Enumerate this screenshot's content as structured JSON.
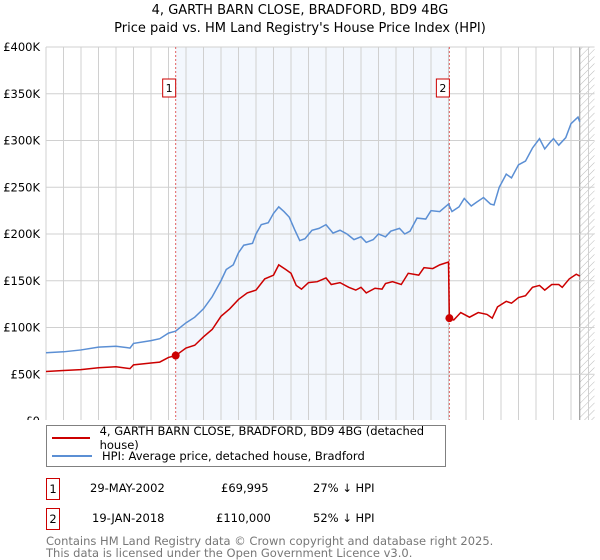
{
  "chart_data": {
    "type": "line",
    "title": "4, GARTH BARN CLOSE, BRADFORD, BD9 4BG",
    "subtitle": "Price paid vs. HM Land Registry's House Price Index (HPI)",
    "xlim": [
      1995,
      2026
    ],
    "ylim": [
      0,
      400
    ],
    "x_ticks": [
      "1995",
      "1996",
      "1997",
      "1998",
      "1999",
      "2000",
      "2001",
      "2002",
      "2003",
      "2004",
      "2005",
      "2006",
      "2007",
      "2008",
      "2009",
      "2010",
      "2011",
      "2012",
      "2013",
      "2014",
      "2015",
      "2016",
      "2017",
      "2018",
      "2019",
      "2020",
      "2021",
      "2022",
      "2023",
      "2024",
      "2025",
      "2026"
    ],
    "y_ticks": [
      {
        "v": 0,
        "label": "£0"
      },
      {
        "v": 50,
        "label": "£50K"
      },
      {
        "v": 100,
        "label": "£100K"
      },
      {
        "v": 150,
        "label": "£150K"
      },
      {
        "v": 200,
        "label": "£200K"
      },
      {
        "v": 250,
        "label": "£250K"
      },
      {
        "v": 300,
        "label": "£300K"
      },
      {
        "v": 350,
        "label": "£350K"
      },
      {
        "v": 400,
        "label": "£400K"
      }
    ],
    "grid": true,
    "shaded_range": [
      2002.41,
      2018.05
    ],
    "forecast_hatch_from": 2025.5,
    "series": [
      {
        "name": "4, GARTH BARN CLOSE, BRADFORD, BD9 4BG (detached house)",
        "color": "#cc0000",
        "points": [
          [
            1995,
            53
          ],
          [
            1996,
            54
          ],
          [
            1997,
            55
          ],
          [
            1998,
            57
          ],
          [
            1999,
            58
          ],
          [
            1999.8,
            56
          ],
          [
            2000,
            60
          ],
          [
            2001,
            62
          ],
          [
            2001.5,
            63
          ],
          [
            2002,
            68
          ],
          [
            2002.41,
            70
          ],
          [
            2003,
            78
          ],
          [
            2003.5,
            81
          ],
          [
            2004,
            90
          ],
          [
            2004.5,
            98
          ],
          [
            2005,
            112
          ],
          [
            2005.5,
            120
          ],
          [
            2006,
            130
          ],
          [
            2006.5,
            137
          ],
          [
            2007,
            140
          ],
          [
            2007.5,
            152
          ],
          [
            2008,
            156
          ],
          [
            2008.3,
            167
          ],
          [
            2008.7,
            162
          ],
          [
            2009,
            158
          ],
          [
            2009.3,
            145
          ],
          [
            2009.6,
            141
          ],
          [
            2010,
            148
          ],
          [
            2010.5,
            149
          ],
          [
            2011,
            153
          ],
          [
            2011.3,
            146
          ],
          [
            2011.8,
            148
          ],
          [
            2012.3,
            143
          ],
          [
            2012.7,
            140
          ],
          [
            2013,
            143
          ],
          [
            2013.3,
            137
          ],
          [
            2013.8,
            142
          ],
          [
            2014.2,
            141
          ],
          [
            2014.4,
            147
          ],
          [
            2014.8,
            149
          ],
          [
            2015.3,
            146
          ],
          [
            2015.7,
            158
          ],
          [
            2016.3,
            156
          ],
          [
            2016.6,
            164
          ],
          [
            2017.1,
            163
          ],
          [
            2017.5,
            167
          ],
          [
            2018.0,
            170
          ],
          [
            2018.05,
            110
          ],
          [
            2018.3,
            108
          ],
          [
            2018.7,
            116
          ],
          [
            2019.2,
            111
          ],
          [
            2019.7,
            116
          ],
          [
            2020.2,
            114
          ],
          [
            2020.5,
            110
          ],
          [
            2020.8,
            122
          ],
          [
            2021.3,
            128
          ],
          [
            2021.6,
            126
          ],
          [
            2022,
            132
          ],
          [
            2022.4,
            134
          ],
          [
            2022.8,
            143
          ],
          [
            2023.2,
            145
          ],
          [
            2023.5,
            140
          ],
          [
            2023.9,
            146
          ],
          [
            2024.3,
            146
          ],
          [
            2024.5,
            143
          ],
          [
            2024.9,
            152
          ],
          [
            2025.3,
            157
          ],
          [
            2025.5,
            155
          ]
        ]
      },
      {
        "name": "HPI: Average price, detached house, Bradford",
        "color": "#5b8fd4",
        "points": [
          [
            1995,
            73
          ],
          [
            1996,
            74
          ],
          [
            1997,
            76
          ],
          [
            1998,
            79
          ],
          [
            1999,
            80
          ],
          [
            1999.8,
            78
          ],
          [
            2000,
            83
          ],
          [
            2001,
            86
          ],
          [
            2001.5,
            88
          ],
          [
            2002,
            94
          ],
          [
            2002.4,
            96
          ],
          [
            2003,
            105
          ],
          [
            2003.5,
            111
          ],
          [
            2004,
            120
          ],
          [
            2004.5,
            133
          ],
          [
            2005,
            150
          ],
          [
            2005.3,
            162
          ],
          [
            2005.7,
            167
          ],
          [
            2006,
            180
          ],
          [
            2006.3,
            188
          ],
          [
            2006.8,
            190
          ],
          [
            2007,
            200
          ],
          [
            2007.3,
            210
          ],
          [
            2007.7,
            212
          ],
          [
            2008,
            222
          ],
          [
            2008.3,
            229
          ],
          [
            2008.6,
            224
          ],
          [
            2008.9,
            218
          ],
          [
            2009.2,
            205
          ],
          [
            2009.5,
            193
          ],
          [
            2009.8,
            195
          ],
          [
            2010.2,
            204
          ],
          [
            2010.6,
            206
          ],
          [
            2011,
            210
          ],
          [
            2011.4,
            201
          ],
          [
            2011.8,
            204
          ],
          [
            2012.2,
            200
          ],
          [
            2012.6,
            194
          ],
          [
            2013,
            197
          ],
          [
            2013.3,
            191
          ],
          [
            2013.7,
            194
          ],
          [
            2014,
            200
          ],
          [
            2014.4,
            197
          ],
          [
            2014.7,
            203
          ],
          [
            2015.2,
            206
          ],
          [
            2015.5,
            200
          ],
          [
            2015.8,
            203
          ],
          [
            2016.2,
            217
          ],
          [
            2016.7,
            216
          ],
          [
            2017,
            225
          ],
          [
            2017.5,
            224
          ],
          [
            2018,
            232
          ],
          [
            2018.2,
            224
          ],
          [
            2018.6,
            229
          ],
          [
            2018.9,
            238
          ],
          [
            2019.3,
            230
          ],
          [
            2019.6,
            234
          ],
          [
            2020,
            239
          ],
          [
            2020.4,
            232
          ],
          [
            2020.6,
            231
          ],
          [
            2020.9,
            250
          ],
          [
            2021.3,
            264
          ],
          [
            2021.6,
            260
          ],
          [
            2022,
            274
          ],
          [
            2022.4,
            278
          ],
          [
            2022.8,
            292
          ],
          [
            2023.2,
            302
          ],
          [
            2023.5,
            291
          ],
          [
            2023.8,
            298
          ],
          [
            2024,
            302
          ],
          [
            2024.3,
            295
          ],
          [
            2024.7,
            303
          ],
          [
            2025,
            318
          ],
          [
            2025.4,
            325
          ],
          [
            2025.5,
            320
          ]
        ]
      }
    ],
    "annotations": [
      {
        "label": "1",
        "x": 2002.41,
        "y": 69.995
      },
      {
        "label": "2",
        "x": 2018.05,
        "y": 110
      }
    ]
  },
  "legend": {
    "items": [
      "4, GARTH BARN CLOSE, BRADFORD, BD9 4BG (detached house)",
      "HPI: Average price, detached house, Bradford"
    ]
  },
  "transactions": [
    {
      "num": "1",
      "date": "29-MAY-2002",
      "price": "£69,995",
      "hpi": "27% ↓ HPI"
    },
    {
      "num": "2",
      "date": "19-JAN-2018",
      "price": "£110,000",
      "hpi": "52% ↓ HPI"
    }
  ],
  "footer": {
    "line1": "Contains HM Land Registry data © Crown copyright and database right 2025.",
    "line2": "This data is licensed under the Open Government Licence v3.0."
  }
}
